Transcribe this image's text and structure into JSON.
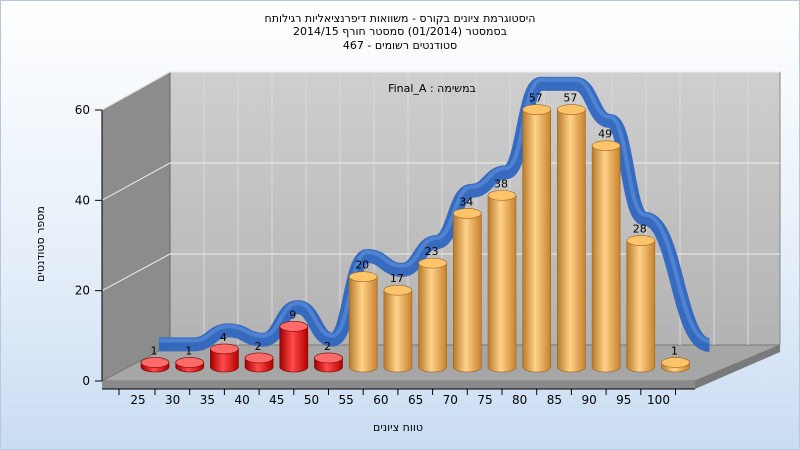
{
  "title_lines": [
    "היסטוגרמת ציונים בקורס - משוואות דיפרנציאליות רגילותח",
    "בסמסטר  (01/2014)  סמסטר חורף 2014/15",
    "סטודנטים רשומים - 467"
  ],
  "chart_data": {
    "type": "bar",
    "categories": [
      "25",
      "30",
      "35",
      "40",
      "45",
      "50",
      "55",
      "60",
      "65",
      "70",
      "75",
      "80",
      "85",
      "90",
      "95",
      "100"
    ],
    "series": [
      {
        "name": "Final_A : במשימה",
        "values": [
          1,
          1,
          4,
          2,
          9,
          2,
          20,
          17,
          23,
          34,
          38,
          57,
          57,
          49,
          28,
          1
        ]
      }
    ],
    "fail_threshold": 55,
    "colors": {
      "fail": "#e01010",
      "pass": "#e8a34a",
      "curve": "#3a6fc4"
    },
    "xlabel": "טווח ציונים",
    "ylabel": "מספר סטודנטים",
    "ylim": [
      0,
      60
    ],
    "yticks": [
      0,
      20,
      40,
      60
    ],
    "legend_text": "Final_A : במשימה",
    "grid": true
  }
}
